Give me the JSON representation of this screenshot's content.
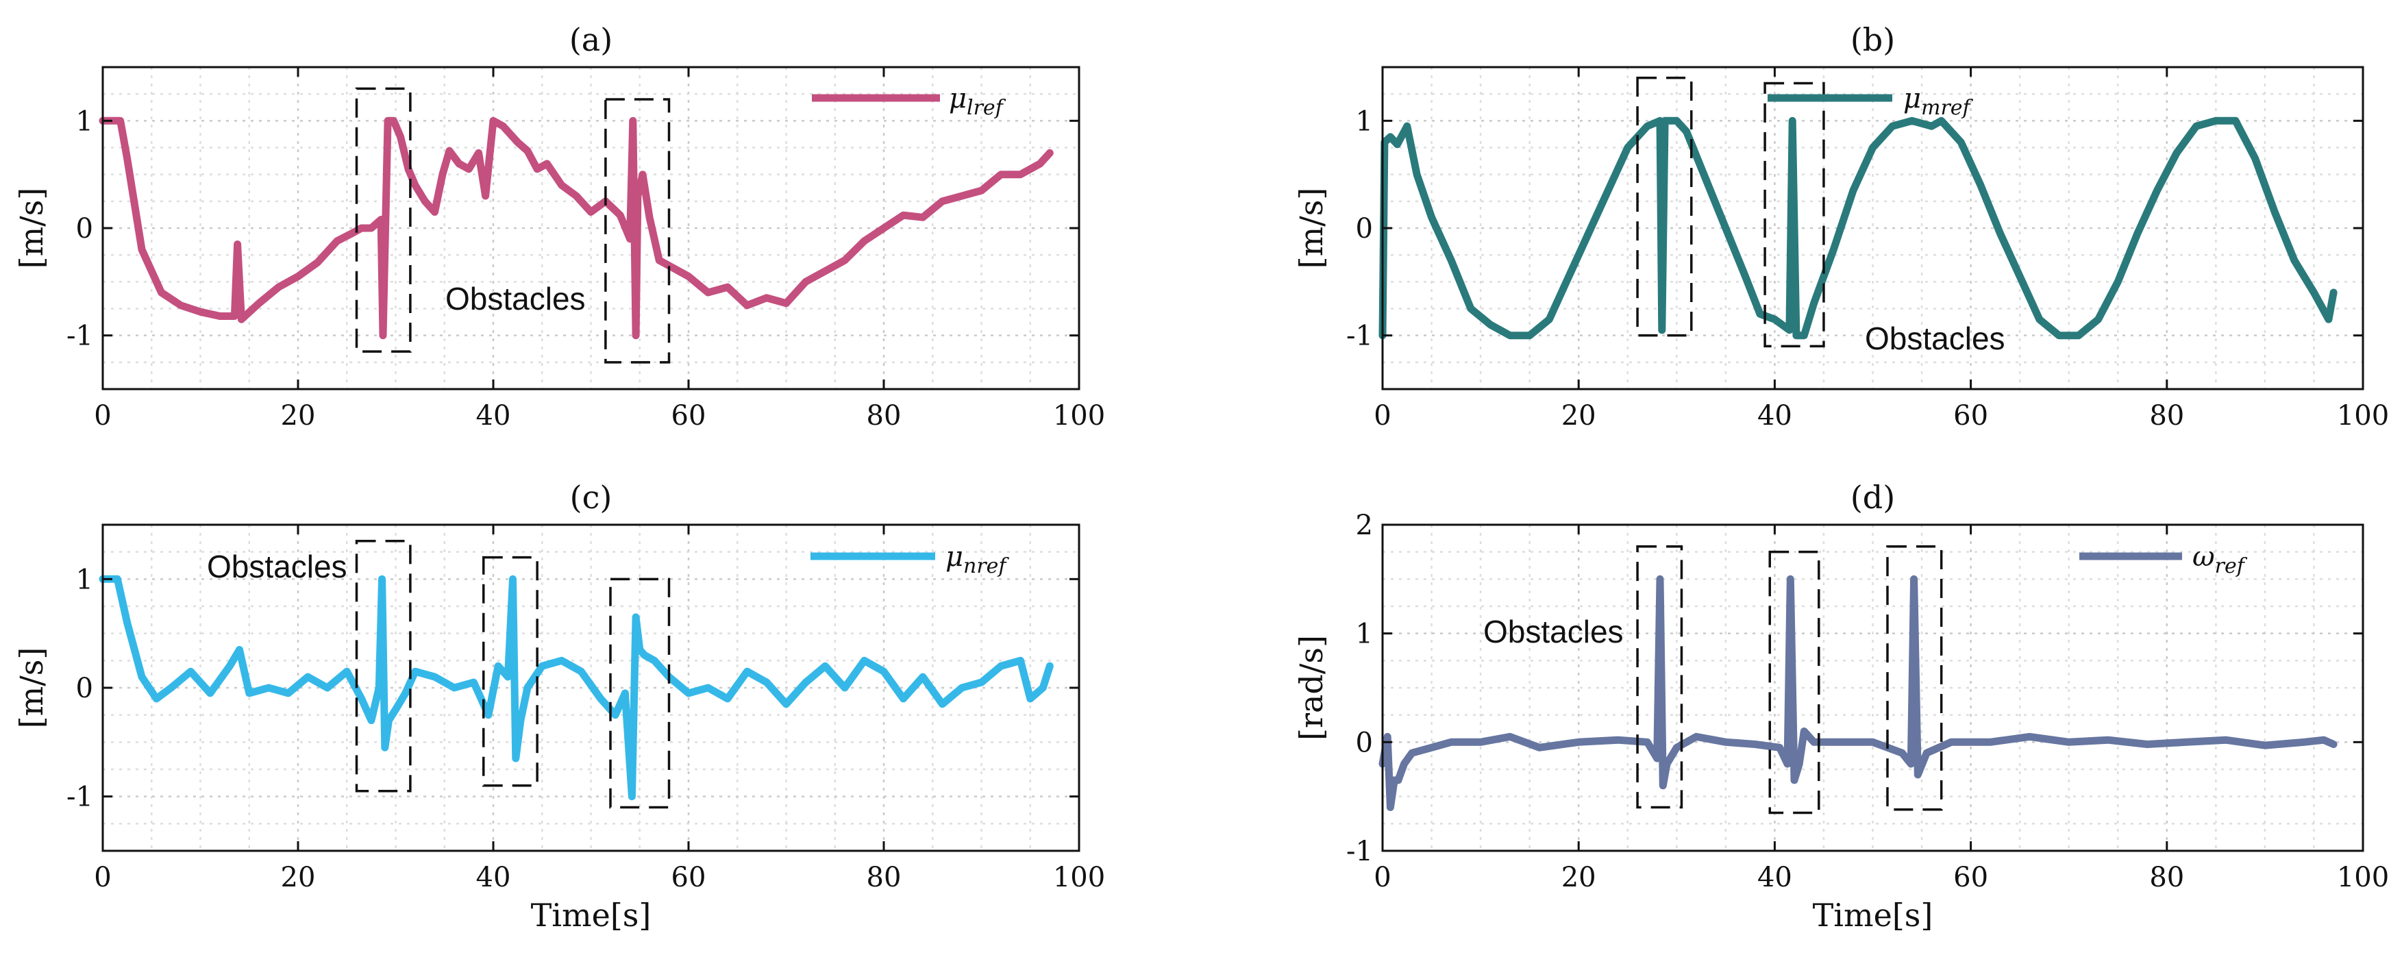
{
  "chart_data": [
    {
      "id": "a",
      "type": "line",
      "title": "(a)",
      "xlabel": "",
      "ylabel": "[m/s]",
      "xlim": [
        0,
        100
      ],
      "ylim": [
        -1.5,
        1.5
      ],
      "xticks": [
        0,
        20,
        40,
        60,
        80,
        100
      ],
      "xtick_labels": [
        "0",
        "20",
        "40",
        "60",
        "80",
        "100"
      ],
      "yticks": [
        -1,
        0,
        1
      ],
      "ytick_labels": [
        "-1",
        "0",
        "1"
      ],
      "grid": true,
      "color": "#c4507f",
      "legend": "μlref",
      "legend_main": "μ",
      "legend_sub": "lref",
      "legend_position": "top-right",
      "annotation": "Obstacles",
      "obstacle_boxes": [
        [
          26,
          31.5,
          -1.15,
          1.3
        ],
        [
          51.5,
          58,
          -1.25,
          1.2
        ]
      ],
      "x": [
        0,
        1.8,
        2.5,
        4,
        6,
        8,
        10,
        12,
        13.5,
        13.8,
        14.2,
        16,
        18,
        20,
        22,
        24,
        25.5,
        26.5,
        27.5,
        28.5,
        28.7,
        29.2,
        29.8,
        30.5,
        31.3,
        32,
        33,
        34,
        34.8,
        35.5,
        36.5,
        37.5,
        38.5,
        39.2,
        40,
        41,
        42.5,
        43.5,
        44.5,
        45.5,
        47,
        48.5,
        50,
        51.5,
        53,
        54,
        54.3,
        54.6,
        54.8,
        55.3,
        56,
        57,
        58,
        60,
        62,
        64,
        66,
        68,
        70,
        72,
        74,
        76,
        78,
        80,
        82,
        84,
        86,
        88,
        90,
        92,
        94,
        96,
        97
      ],
      "values": [
        1.0,
        1.0,
        0.65,
        -0.2,
        -0.6,
        -0.72,
        -0.78,
        -0.82,
        -0.82,
        -0.15,
        -0.85,
        -0.7,
        -0.55,
        -0.45,
        -0.32,
        -0.12,
        -0.05,
        0.0,
        0.0,
        0.08,
        -1.0,
        1.0,
        1.0,
        0.85,
        0.55,
        0.4,
        0.25,
        0.15,
        0.5,
        0.72,
        0.6,
        0.55,
        0.7,
        0.3,
        1.0,
        0.95,
        0.8,
        0.72,
        0.55,
        0.6,
        0.4,
        0.3,
        0.15,
        0.25,
        0.12,
        -0.1,
        1.0,
        -1.0,
        0.3,
        0.5,
        0.1,
        -0.3,
        -0.35,
        -0.45,
        -0.6,
        -0.55,
        -0.72,
        -0.65,
        -0.7,
        -0.5,
        -0.4,
        -0.3,
        -0.12,
        0.0,
        0.12,
        0.1,
        0.25,
        0.3,
        0.35,
        0.5,
        0.5,
        0.6,
        0.7
      ]
    },
    {
      "id": "b",
      "type": "line",
      "title": "(b)",
      "xlabel": "",
      "ylabel": "[m/s]",
      "xlim": [
        0,
        100
      ],
      "ylim": [
        -1.5,
        1.5
      ],
      "xticks": [
        0,
        20,
        40,
        60,
        80,
        100
      ],
      "xtick_labels": [
        "0",
        "20",
        "40",
        "60",
        "80",
        "100"
      ],
      "yticks": [
        -1,
        0,
        1
      ],
      "ytick_labels": [
        "-1",
        "0",
        "1"
      ],
      "grid": true,
      "color": "#2a7a7c",
      "legend": "μmref",
      "legend_main": "μ",
      "legend_sub": "mref",
      "legend_position": "top-center",
      "annotation": "Obstacles",
      "obstacle_boxes": [
        [
          26,
          31.5,
          -1.0,
          1.4
        ],
        [
          39,
          45,
          -1.1,
          1.35
        ]
      ],
      "x": [
        0,
        0.2,
        0.8,
        1.5,
        2.5,
        3.5,
        5,
        7,
        9,
        11,
        13,
        15,
        17,
        19,
        21,
        23,
        25,
        27,
        28.3,
        28.5,
        28.8,
        29.2,
        30,
        31,
        33,
        35,
        37,
        38.5,
        40,
        41.5,
        41.8,
        42.2,
        43,
        44,
        46,
        48,
        50,
        52,
        54,
        56,
        57,
        59,
        61,
        63,
        65,
        67,
        69,
        71,
        73,
        75,
        77,
        79,
        81,
        83,
        85,
        87,
        89,
        91,
        93,
        95,
        96.5,
        97
      ],
      "values": [
        -1.0,
        0.8,
        0.85,
        0.78,
        0.95,
        0.5,
        0.1,
        -0.3,
        -0.75,
        -0.9,
        -1.0,
        -1.0,
        -0.85,
        -0.45,
        -0.05,
        0.35,
        0.75,
        0.95,
        1.0,
        -0.95,
        1.0,
        1.0,
        1.0,
        0.9,
        0.45,
        0.0,
        -0.45,
        -0.8,
        -0.85,
        -0.95,
        1.0,
        -1.0,
        -1.0,
        -0.7,
        -0.2,
        0.35,
        0.75,
        0.95,
        1.0,
        0.95,
        1.0,
        0.8,
        0.4,
        -0.05,
        -0.45,
        -0.85,
        -1.0,
        -1.0,
        -0.85,
        -0.5,
        -0.05,
        0.35,
        0.7,
        0.95,
        1.0,
        1.0,
        0.65,
        0.15,
        -0.3,
        -0.6,
        -0.85,
        -0.6
      ]
    },
    {
      "id": "c",
      "type": "line",
      "title": "(c)",
      "xlabel": "Time[s]",
      "ylabel": "[m/s]",
      "xlim": [
        0,
        100
      ],
      "ylim": [
        -1.5,
        1.5
      ],
      "xticks": [
        0,
        20,
        40,
        60,
        80,
        100
      ],
      "xtick_labels": [
        "0",
        "20",
        "40",
        "60",
        "80",
        "100"
      ],
      "yticks": [
        -1,
        0,
        1
      ],
      "ytick_labels": [
        "-1",
        "0",
        "1"
      ],
      "grid": true,
      "color": "#35b8e8",
      "legend": "μnref",
      "legend_main": "μ",
      "legend_sub": "nref",
      "legend_position": "top-right",
      "annotation": "Obstacles",
      "obstacle_boxes": [
        [
          26,
          31.5,
          -0.95,
          1.35
        ],
        [
          39,
          44.5,
          -0.9,
          1.2
        ],
        [
          52,
          58,
          -1.1,
          1.0
        ]
      ],
      "x": [
        0,
        1.5,
        2.5,
        4,
        5.5,
        7,
        9,
        11,
        13,
        14,
        15,
        17,
        19,
        21,
        23,
        25,
        26.5,
        27.5,
        28.3,
        28.6,
        28.9,
        29.3,
        30,
        31,
        32,
        34,
        36,
        38,
        39.5,
        40.5,
        41.5,
        42,
        42.3,
        42.8,
        43.5,
        45,
        47,
        49,
        51,
        52.5,
        53.5,
        54.2,
        54.6,
        55,
        55.5,
        56.5,
        58,
        60,
        62,
        64,
        66,
        68,
        70,
        72,
        74,
        76,
        78,
        80,
        82,
        84,
        86,
        88,
        90,
        92,
        94,
        95,
        96.3,
        97
      ],
      "values": [
        1.0,
        1.0,
        0.6,
        0.1,
        -0.1,
        0.0,
        0.15,
        -0.05,
        0.2,
        0.35,
        -0.05,
        0.0,
        -0.05,
        0.1,
        0.0,
        0.15,
        -0.1,
        -0.3,
        0.0,
        1.0,
        -0.55,
        -0.3,
        -0.2,
        -0.05,
        0.15,
        0.1,
        0.0,
        0.05,
        -0.25,
        0.2,
        0.1,
        1.0,
        -0.65,
        -0.3,
        0.0,
        0.2,
        0.25,
        0.15,
        -0.1,
        -0.25,
        -0.05,
        -1.0,
        0.65,
        0.35,
        0.3,
        0.25,
        0.1,
        -0.05,
        0.0,
        -0.1,
        0.15,
        0.05,
        -0.15,
        0.05,
        0.2,
        0.0,
        0.25,
        0.15,
        -0.1,
        0.1,
        -0.15,
        0.0,
        0.05,
        0.2,
        0.25,
        -0.1,
        0.0,
        0.2
      ]
    },
    {
      "id": "d",
      "type": "line",
      "title": "(d)",
      "xlabel": "Time[s]",
      "ylabel": "[rad/s]",
      "xlim": [
        0,
        100
      ],
      "ylim": [
        -1,
        2
      ],
      "xticks": [
        0,
        20,
        40,
        60,
        80,
        100
      ],
      "xtick_labels": [
        "0",
        "20",
        "40",
        "60",
        "80",
        "100"
      ],
      "yticks": [
        -1,
        0,
        1,
        2
      ],
      "ytick_labels": [
        "-1",
        "0",
        "1",
        "2"
      ],
      "grid": true,
      "color": "#6676a0",
      "legend": "ωref",
      "legend_main": "ω",
      "legend_sub": "ref",
      "legend_position": "top-right",
      "annotation": "Obstacles",
      "obstacle_boxes": [
        [
          26,
          30.5,
          -0.6,
          1.8
        ],
        [
          39.5,
          44.5,
          -0.65,
          1.75
        ],
        [
          51.5,
          57,
          -0.62,
          1.8
        ]
      ],
      "x": [
        0,
        0.5,
        0.8,
        1.2,
        1.6,
        2.2,
        3,
        5,
        7,
        10,
        13,
        16,
        20,
        24,
        27,
        28,
        28.3,
        28.6,
        29,
        30,
        32,
        35,
        38,
        40.5,
        41.3,
        41.6,
        42,
        42.5,
        43,
        44,
        46,
        50,
        53,
        53.9,
        54.2,
        54.6,
        55.5,
        58,
        62,
        66,
        70,
        74,
        78,
        82,
        86,
        90,
        94,
        96,
        97
      ],
      "values": [
        -0.2,
        0.05,
        -0.6,
        -0.35,
        -0.35,
        -0.2,
        -0.1,
        -0.05,
        0.0,
        0.0,
        0.05,
        -0.05,
        0.0,
        0.02,
        0.0,
        -0.15,
        1.5,
        -0.4,
        -0.2,
        -0.05,
        0.05,
        0.0,
        -0.02,
        -0.05,
        -0.2,
        1.5,
        -0.35,
        -0.2,
        0.1,
        0.0,
        0.0,
        0.0,
        -0.1,
        -0.2,
        1.5,
        -0.3,
        -0.1,
        0.0,
        0.0,
        0.05,
        0.0,
        0.02,
        -0.02,
        0.0,
        0.02,
        -0.03,
        0.0,
        0.02,
        -0.02
      ]
    }
  ]
}
